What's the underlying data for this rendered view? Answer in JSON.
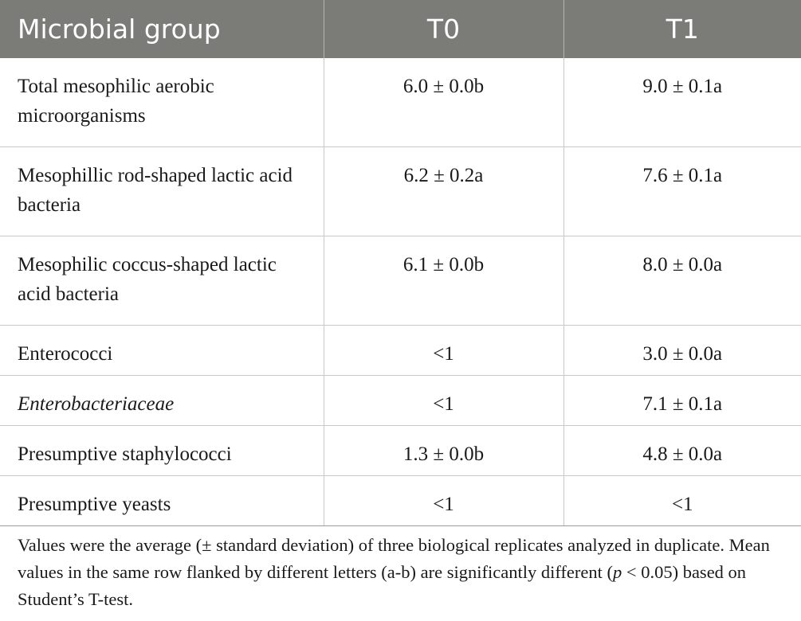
{
  "table": {
    "headers": [
      "Microbial group",
      "T0",
      "T1"
    ],
    "rows": [
      {
        "group": "Total mesophilic aerobic microorganisms",
        "t0": "6.0 ± 0.0b",
        "t1": "9.0 ± 0.1a",
        "italic": false
      },
      {
        "group": "Mesophillic rod-shaped lactic acid bacteria",
        "t0": "6.2 ± 0.2a",
        "t1": "7.6 ± 0.1a",
        "italic": false
      },
      {
        "group": "Mesophilic coccus-shaped lactic acid bacteria",
        "t0": "6.1 ± 0.0b",
        "t1": "8.0 ± 0.0a",
        "italic": false
      },
      {
        "group": "Enterococci",
        "t0": "<1",
        "t1": "3.0 ± 0.0a",
        "italic": false
      },
      {
        "group": "Enterobacteriaceae",
        "t0": "<1",
        "t1": "7.1 ± 0.1a",
        "italic": true
      },
      {
        "group": "Presumptive staphylococci",
        "t0": "1.3 ± 0.0b",
        "t1": "4.8 ± 0.0a",
        "italic": false
      },
      {
        "group": "Presumptive yeasts",
        "t0": "<1",
        "t1": "<1",
        "italic": false
      }
    ]
  },
  "footnote": {
    "part1": "Values were the average (± standard deviation) of three biological replicates analyzed in duplicate. Mean values in the same row flanked by different letters (a-b) are significantly different (",
    "p": "p",
    "part2": " < 0.05) based on Student’s T-test."
  }
}
